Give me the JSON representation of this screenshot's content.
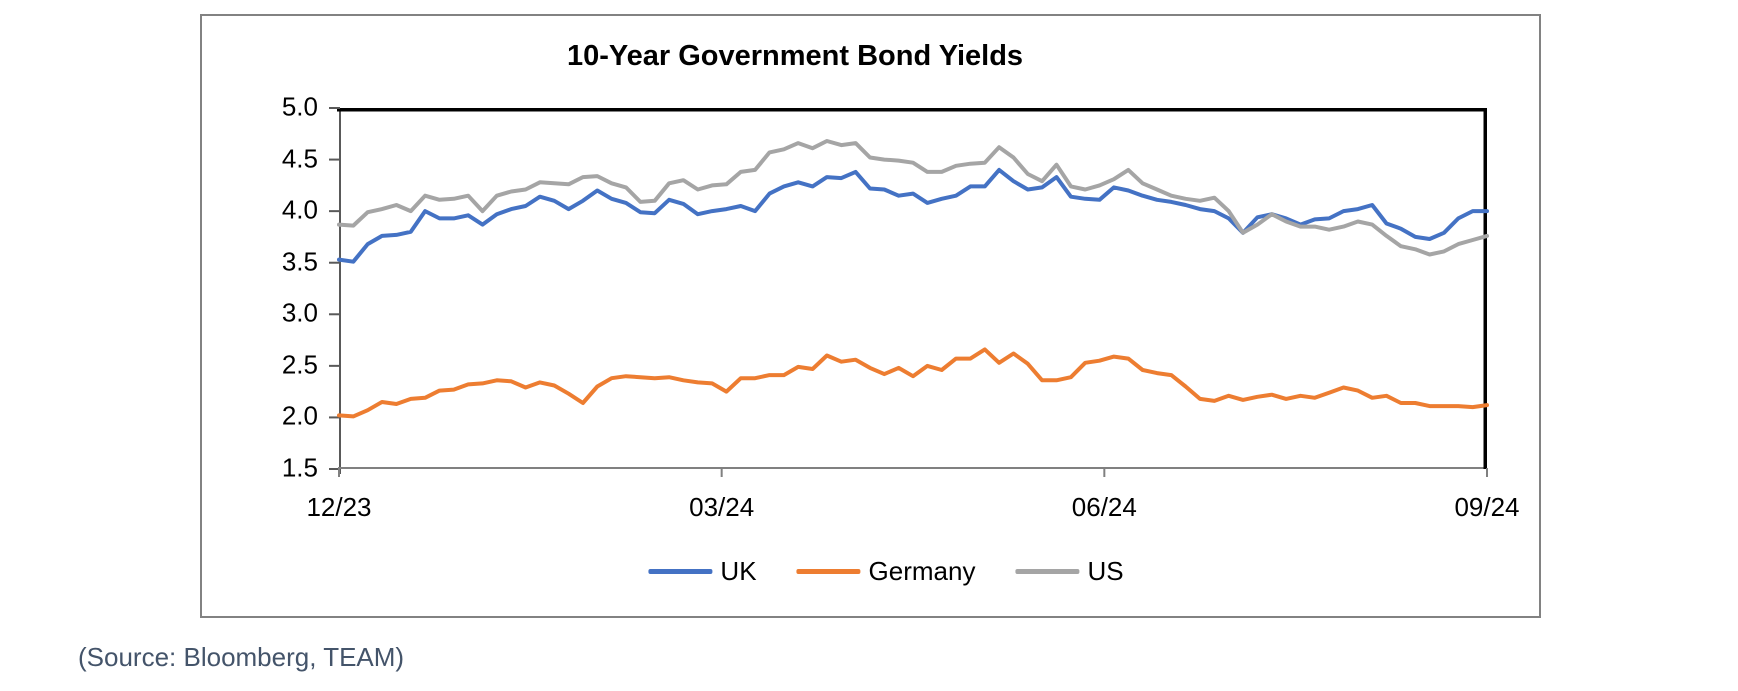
{
  "source_note": "(Source: Bloomberg, TEAM)",
  "colors": {
    "uk": "#4472C4",
    "germany": "#ED7D31",
    "us": "#A5A5A5",
    "panel_border": "#828282",
    "plot_border": "#000000",
    "axis_gray": "#808080",
    "tick_dark": "#595959",
    "source_text": "#44546A"
  },
  "chart_data": {
    "type": "line",
    "title": "10-Year Government Bond Yields",
    "x_tick_labels": [
      "12/23",
      "03/24",
      "06/24",
      "09/24"
    ],
    "y_ticks": [
      5.0,
      4.5,
      4.0,
      3.5,
      3.0,
      2.5,
      2.0,
      1.5
    ],
    "ylim": [
      1.5,
      5.0
    ],
    "grid": false,
    "legend_position": "bottom",
    "x_range_note": "daily observations from 12/23 to 09/24",
    "series": [
      {
        "name": "UK",
        "color": "#4472C4",
        "values": [
          3.53,
          3.51,
          3.68,
          3.76,
          3.77,
          3.8,
          4.0,
          3.93,
          3.93,
          3.96,
          3.87,
          3.97,
          4.02,
          4.05,
          4.14,
          4.1,
          4.02,
          4.1,
          4.2,
          4.12,
          4.08,
          3.99,
          3.98,
          4.11,
          4.07,
          3.97,
          4.0,
          4.02,
          4.05,
          4.0,
          4.17,
          4.24,
          4.28,
          4.24,
          4.33,
          4.32,
          4.38,
          4.22,
          4.21,
          4.15,
          4.17,
          4.08,
          4.12,
          4.15,
          4.24,
          4.24,
          4.4,
          4.29,
          4.21,
          4.23,
          4.33,
          4.14,
          4.12,
          4.11,
          4.23,
          4.2,
          4.15,
          4.11,
          4.09,
          4.06,
          4.02,
          4.0,
          3.93,
          3.79,
          3.94,
          3.97,
          3.93,
          3.87,
          3.92,
          3.93,
          4.0,
          4.02,
          4.06,
          3.88,
          3.83,
          3.75,
          3.73,
          3.79,
          3.93,
          4.0,
          4.0
        ]
      },
      {
        "name": "Germany",
        "color": "#ED7D31",
        "values": [
          2.02,
          2.01,
          2.07,
          2.15,
          2.13,
          2.18,
          2.19,
          2.26,
          2.27,
          2.32,
          2.33,
          2.36,
          2.35,
          2.29,
          2.34,
          2.31,
          2.23,
          2.14,
          2.3,
          2.38,
          2.4,
          2.39,
          2.38,
          2.39,
          2.36,
          2.34,
          2.33,
          2.25,
          2.38,
          2.38,
          2.41,
          2.41,
          2.49,
          2.47,
          2.6,
          2.54,
          2.56,
          2.48,
          2.42,
          2.48,
          2.4,
          2.5,
          2.46,
          2.57,
          2.57,
          2.66,
          2.53,
          2.62,
          2.52,
          2.36,
          2.36,
          2.39,
          2.53,
          2.55,
          2.59,
          2.57,
          2.46,
          2.43,
          2.41,
          2.3,
          2.18,
          2.16,
          2.21,
          2.17,
          2.2,
          2.22,
          2.18,
          2.21,
          2.19,
          2.24,
          2.29,
          2.26,
          2.19,
          2.21,
          2.14,
          2.14,
          2.11,
          2.11,
          2.11,
          2.1,
          2.12
        ]
      },
      {
        "name": "US",
        "color": "#A5A5A5",
        "values": [
          3.87,
          3.86,
          3.99,
          4.02,
          4.06,
          4.0,
          4.15,
          4.11,
          4.12,
          4.15,
          4.0,
          4.15,
          4.19,
          4.21,
          4.28,
          4.27,
          4.26,
          4.33,
          4.34,
          4.27,
          4.23,
          4.09,
          4.1,
          4.27,
          4.3,
          4.21,
          4.25,
          4.26,
          4.38,
          4.4,
          4.57,
          4.6,
          4.66,
          4.61,
          4.68,
          4.64,
          4.66,
          4.52,
          4.5,
          4.49,
          4.47,
          4.38,
          4.38,
          4.44,
          4.46,
          4.47,
          4.62,
          4.52,
          4.36,
          4.29,
          4.45,
          4.24,
          4.21,
          4.25,
          4.31,
          4.4,
          4.27,
          4.21,
          4.15,
          4.12,
          4.1,
          4.13,
          4.0,
          3.79,
          3.87,
          3.97,
          3.9,
          3.85,
          3.85,
          3.82,
          3.85,
          3.9,
          3.87,
          3.76,
          3.66,
          3.63,
          3.58,
          3.61,
          3.68,
          3.72,
          3.76
        ]
      }
    ]
  }
}
